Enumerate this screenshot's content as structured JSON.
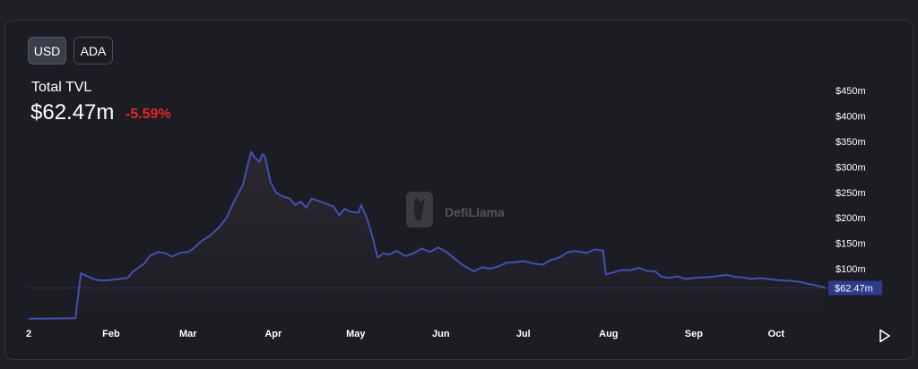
{
  "toggles": {
    "usd_label": "USD",
    "ada_label": "ADA",
    "active": "USD"
  },
  "summary": {
    "label": "Total TVL",
    "value": "$62.47m",
    "change": "-5.59%"
  },
  "watermark": {
    "text": "DefiLlama"
  },
  "colors": {
    "line": "#3f51b5",
    "change_negative": "#e5242b",
    "marker_bg": "#2e3a8c",
    "axis_text": "#ffffff"
  },
  "chart_data": {
    "type": "area",
    "title": "Total TVL",
    "xlabel": "",
    "ylabel": "",
    "ylim": [
      0,
      450
    ],
    "y_unit": "$m",
    "y_ticks": [
      {
        "value": 100,
        "label": "$100m"
      },
      {
        "value": 150,
        "label": "$150m"
      },
      {
        "value": 200,
        "label": "$200m"
      },
      {
        "value": 250,
        "label": "$250m"
      },
      {
        "value": 300,
        "label": "$300m"
      },
      {
        "value": 350,
        "label": "$350m"
      },
      {
        "value": 400,
        "label": "$400m"
      },
      {
        "value": 450,
        "label": "$450m"
      }
    ],
    "x_ticks": [
      {
        "x": 0,
        "label": "2"
      },
      {
        "x": 30,
        "label": "Feb"
      },
      {
        "x": 58,
        "label": "Mar"
      },
      {
        "x": 89,
        "label": "Apr"
      },
      {
        "x": 119,
        "label": "May"
      },
      {
        "x": 150,
        "label": "Jun"
      },
      {
        "x": 180,
        "label": "Jul"
      },
      {
        "x": 211,
        "label": "Aug"
      },
      {
        "x": 242,
        "label": "Sep"
      },
      {
        "x": 272,
        "label": "Oct"
      }
    ],
    "x_max": 290,
    "current": {
      "value": 62.47,
      "label": "$62.47m"
    },
    "grid": false,
    "series": [
      {
        "values": [
          [
            0,
            2
          ],
          [
            17,
            3
          ],
          [
            19,
            91
          ],
          [
            22,
            84
          ],
          [
            24,
            79
          ],
          [
            27,
            77
          ],
          [
            30,
            78
          ],
          [
            33,
            80
          ],
          [
            36,
            82
          ],
          [
            38,
            95
          ],
          [
            42,
            110
          ],
          [
            44,
            125
          ],
          [
            47,
            133
          ],
          [
            50,
            130
          ],
          [
            52,
            124
          ],
          [
            55,
            131
          ],
          [
            58,
            133
          ],
          [
            60,
            140
          ],
          [
            63,
            155
          ],
          [
            66,
            165
          ],
          [
            69,
            180
          ],
          [
            72,
            200
          ],
          [
            75,
            235
          ],
          [
            78,
            265
          ],
          [
            80,
            310
          ],
          [
            81,
            330
          ],
          [
            82,
            320
          ],
          [
            84,
            310
          ],
          [
            85,
            325
          ],
          [
            86,
            320
          ],
          [
            88,
            270
          ],
          [
            90,
            250
          ],
          [
            92,
            243
          ],
          [
            95,
            238
          ],
          [
            97,
            225
          ],
          [
            99,
            232
          ],
          [
            101,
            220
          ],
          [
            103,
            238
          ],
          [
            105,
            234
          ],
          [
            108,
            228
          ],
          [
            111,
            222
          ],
          [
            113,
            205
          ],
          [
            115,
            218
          ],
          [
            117,
            212
          ],
          [
            120,
            210
          ],
          [
            121,
            225
          ],
          [
            123,
            200
          ],
          [
            125,
            165
          ],
          [
            127,
            122
          ],
          [
            129,
            130
          ],
          [
            131,
            128
          ],
          [
            134,
            135
          ],
          [
            137,
            125
          ],
          [
            140,
            130
          ],
          [
            143,
            140
          ],
          [
            146,
            133
          ],
          [
            149,
            142
          ],
          [
            152,
            133
          ],
          [
            155,
            120
          ],
          [
            158,
            107
          ],
          [
            162,
            95
          ],
          [
            165,
            103
          ],
          [
            168,
            100
          ],
          [
            171,
            105
          ],
          [
            174,
            112
          ],
          [
            177,
            113
          ],
          [
            180,
            115
          ],
          [
            184,
            110
          ],
          [
            187,
            108
          ],
          [
            190,
            117
          ],
          [
            193,
            122
          ],
          [
            196,
            132
          ],
          [
            199,
            135
          ],
          [
            203,
            131
          ],
          [
            206,
            138
          ],
          [
            209,
            136
          ],
          [
            210,
            89
          ],
          [
            213,
            93
          ],
          [
            216,
            98
          ],
          [
            219,
            97
          ],
          [
            222,
            102
          ],
          [
            225,
            96
          ],
          [
            228,
            95
          ],
          [
            230,
            85
          ],
          [
            233,
            82
          ],
          [
            236,
            85
          ],
          [
            239,
            80
          ],
          [
            242,
            82
          ],
          [
            245,
            83
          ],
          [
            248,
            84
          ],
          [
            251,
            86
          ],
          [
            254,
            88
          ],
          [
            257,
            84
          ],
          [
            260,
            83
          ],
          [
            263,
            80
          ],
          [
            266,
            82
          ],
          [
            269,
            80
          ],
          [
            272,
            78
          ],
          [
            275,
            77
          ],
          [
            278,
            76
          ],
          [
            281,
            74
          ],
          [
            284,
            70
          ],
          [
            287,
            67
          ],
          [
            290,
            62.47
          ]
        ]
      }
    ]
  }
}
